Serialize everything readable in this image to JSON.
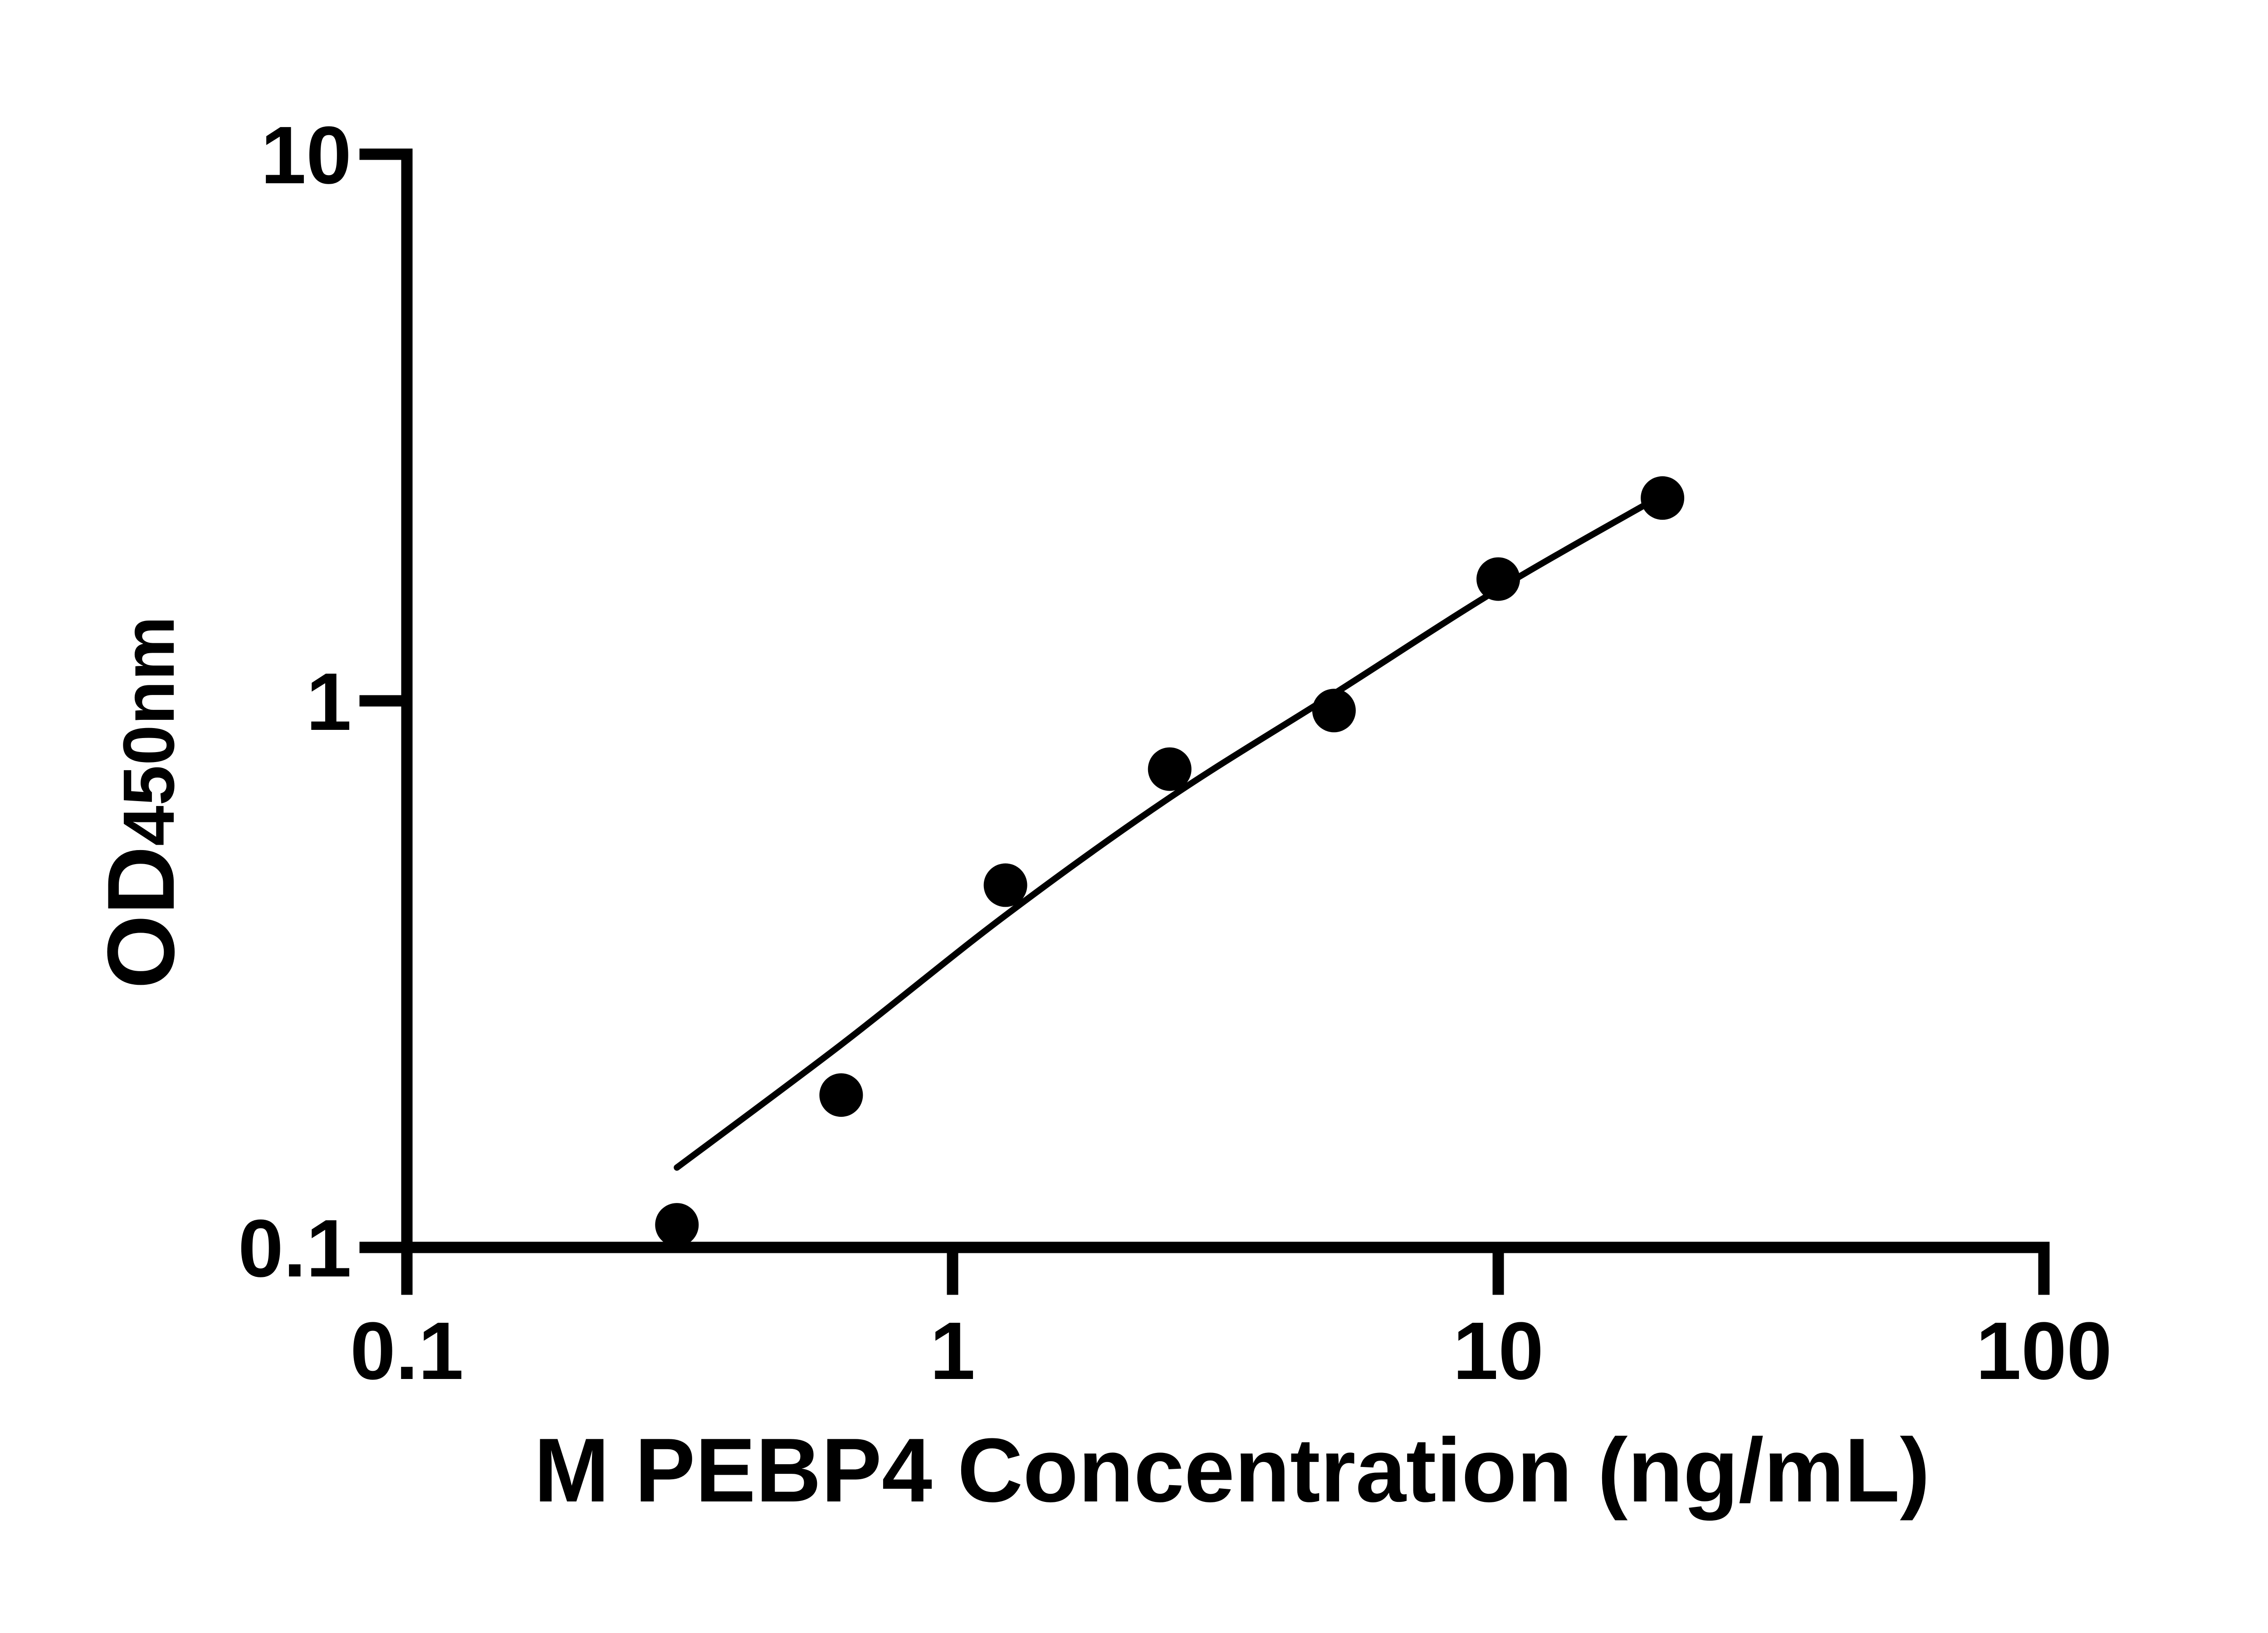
{
  "figure": {
    "background": "#ffffff",
    "ink": "#000000"
  },
  "chart_data": {
    "type": "scatter",
    "title": "",
    "xlabel": "M PEBP4 Concentration (ng/mL)",
    "ylabel": "OD450nm",
    "ylabel_main": "OD",
    "ylabel_sub": "450nm",
    "x_scale": "log",
    "y_scale": "log",
    "xlim": [
      0.1,
      100
    ],
    "ylim": [
      0.1,
      10
    ],
    "x_ticks": [
      0.1,
      1,
      10,
      100
    ],
    "x_tick_labels": [
      "0.1",
      "1",
      "10",
      "100"
    ],
    "y_ticks": [
      0.1,
      1,
      10
    ],
    "y_tick_labels": [
      "0.1",
      "1",
      "10"
    ],
    "grid": false,
    "legend": false,
    "marker": "filled-circle",
    "marker_color": "#000000",
    "curve_color": "#000000",
    "series": [
      {
        "name": "standard-points",
        "type": "scatter",
        "x": [
          0.3125,
          0.625,
          1.25,
          2.5,
          5,
          10,
          20
        ],
        "y": [
          0.11,
          0.19,
          0.46,
          0.75,
          0.96,
          1.67,
          2.35
        ]
      },
      {
        "name": "fit-curve",
        "type": "line",
        "x": [
          0.3125,
          0.625,
          1.25,
          2.5,
          5,
          10,
          20
        ],
        "y": [
          0.14,
          0.235,
          0.405,
          0.665,
          1.03,
          1.6,
          2.38
        ]
      }
    ]
  }
}
